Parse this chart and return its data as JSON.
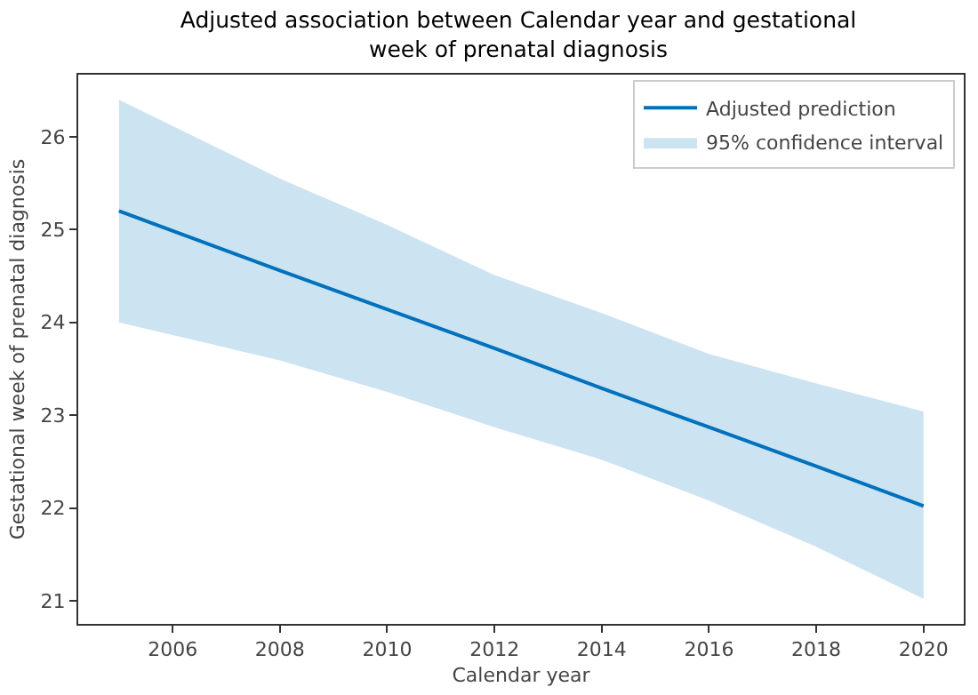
{
  "chart_data": {
    "type": "line",
    "title": "Adjusted association between Calendar year and gestational week of prenatal diagnosis",
    "xlabel": "Calendar year",
    "ylabel": "Gestational week of prenatal diagnosis",
    "x": [
      2005,
      2008,
      2010,
      2012,
      2014,
      2016,
      2018,
      2020
    ],
    "series": [
      {
        "name": "Adjusted prediction",
        "color": "#0072bd",
        "values": [
          25.2,
          24.56,
          24.14,
          23.72,
          23.29,
          22.87,
          22.45,
          22.02
        ],
        "lower": [
          24.0,
          23.59,
          23.25,
          22.87,
          22.52,
          22.08,
          21.58,
          21.02
        ],
        "upper": [
          26.4,
          25.55,
          25.05,
          24.51,
          24.1,
          23.66,
          23.34,
          23.04
        ]
      }
    ],
    "annotations": [
      "95% confidence interval"
    ],
    "xlim": [
      2004.24,
      2020.75
    ],
    "ylim": [
      20.75,
      26.67
    ],
    "xticks": [
      2006,
      2008,
      2010,
      2012,
      2014,
      2016,
      2018,
      2020
    ],
    "yticks": [
      21,
      22,
      23,
      24,
      25,
      26
    ],
    "grid": false,
    "legend": "top right",
    "marker": "none",
    "line_style": "solid"
  }
}
